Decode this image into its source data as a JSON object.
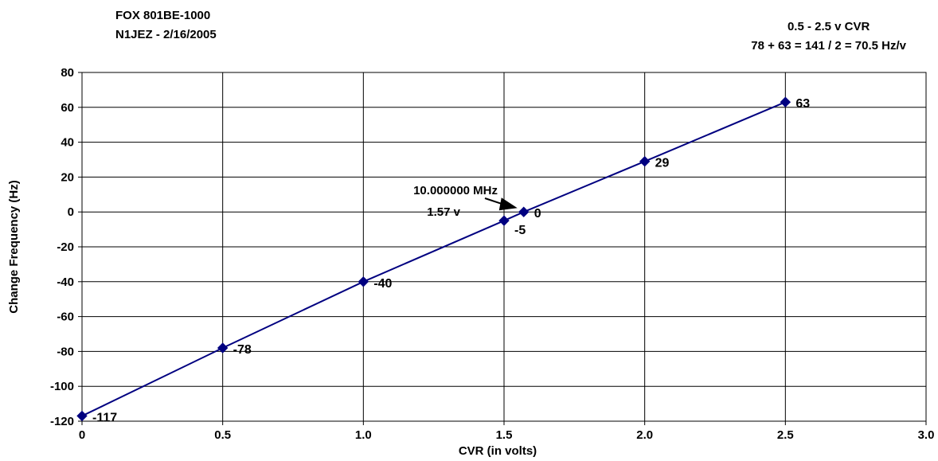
{
  "header": {
    "left_line1": "FOX 801BE-1000",
    "left_line2": "N1JEZ - 2/16/2005",
    "right_line1": "0.5 - 2.5 v CVR",
    "right_line2": "78 + 63 = 141 / 2 = 70.5 Hz/v"
  },
  "chart_data": {
    "type": "line",
    "xlabel": "CVR (in volts)",
    "ylabel": "Change Frequency  (Hz)",
    "xlim": [
      0,
      3.0
    ],
    "ylim": [
      -120,
      80
    ],
    "x_ticks": [
      0,
      0.5,
      1.0,
      1.5,
      2.0,
      2.5,
      3.0
    ],
    "x_tick_labels": [
      "0",
      "0.5",
      "1.0",
      "1.5",
      "2.0",
      "2.5",
      "3.0"
    ],
    "y_ticks": [
      80,
      60,
      40,
      20,
      0,
      -20,
      -40,
      -60,
      -80,
      -100,
      -120
    ],
    "y_tick_labels": [
      "80",
      "60",
      "40",
      "20",
      "0",
      "-20",
      "-40",
      "-60",
      "-80",
      "-100",
      "-120"
    ],
    "grid": true,
    "series": [
      {
        "x": [
          0,
          0.5,
          1.0,
          1.5,
          1.57,
          2.0,
          2.5
        ],
        "y": [
          -117,
          -78,
          -40,
          -5,
          0,
          29,
          63
        ],
        "labels": [
          "-117",
          "-78",
          "-40",
          "-5",
          "0",
          "29",
          "63"
        ],
        "color": "#000080",
        "marker": "diamond"
      }
    ],
    "annotations": [
      {
        "text_line1": "10.000000 MHz",
        "text_line2": "1.57 v",
        "points_to": {
          "x": 1.57,
          "y": 0
        }
      }
    ]
  }
}
